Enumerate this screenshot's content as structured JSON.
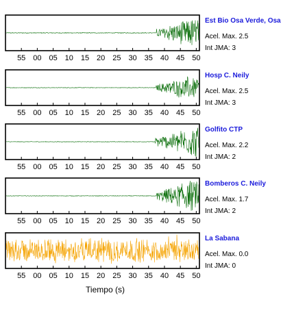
{
  "chart_data": {
    "type": "line",
    "xlabel": "Tiempo (s)",
    "tick_labels": [
      "55",
      "00",
      "05",
      "10",
      "15",
      "20",
      "25",
      "30",
      "35",
      "40",
      "45",
      "50"
    ],
    "tick_seconds": [
      55,
      60,
      65,
      70,
      75,
      80,
      85,
      90,
      95,
      100,
      105,
      110
    ],
    "x_range": [
      50,
      111
    ],
    "grid": false,
    "panels": [
      {
        "station": "Est Bio Osa Verde, Osa",
        "acel_line": "Acel. Max. 2.5",
        "int_line": "Int JMA: 3",
        "acel_max": 2.5,
        "int_jma": 3,
        "color": "#0a6e0a",
        "onset": 97.5,
        "peak_at": 108.5,
        "amplitude": 0.95,
        "noise": 0.02
      },
      {
        "station": "Hosp C. Neily",
        "acel_line": "Acel. Max. 2.5",
        "int_line": "Int JMA: 3",
        "acel_max": 2.5,
        "int_jma": 3,
        "color": "#0a6e0a",
        "onset": 97.4,
        "peak_at": 105.5,
        "amplitude": 0.68,
        "noise": 0.015
      },
      {
        "station": "Golfito CTP",
        "acel_line": "Acel. Max. 2.2",
        "int_line": "Int JMA: 2",
        "acel_max": 2.2,
        "int_jma": 2,
        "color": "#0a6e0a",
        "onset": 97.0,
        "peak_at": 110.0,
        "amplitude": 1.0,
        "noise": 0.015
      },
      {
        "station": "Bomberos C. Neily",
        "acel_line": "Acel. Max. 1.7",
        "int_line": "Int JMA: 2",
        "acel_max": 1.7,
        "int_jma": 2,
        "color": "#0a6e0a",
        "onset": 97.5,
        "peak_at": 108.0,
        "amplitude": 0.95,
        "noise": 0.015
      },
      {
        "station": "La Sabana",
        "acel_line": "Acel. Max. 0.0",
        "int_line": "Int JMA: 0",
        "acel_max": 0.0,
        "int_jma": 0,
        "color": "#f5a300",
        "onset": null,
        "peak_at": null,
        "amplitude": 0.9,
        "noise": 0.45
      }
    ]
  }
}
